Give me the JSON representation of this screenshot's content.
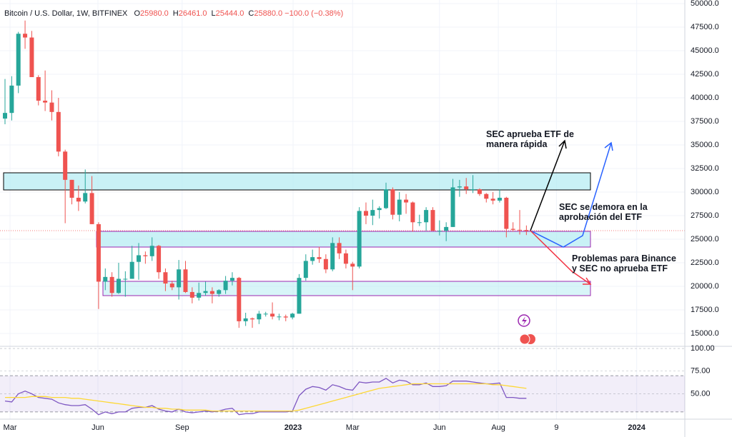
{
  "chart_data": [
    {
      "type": "candlestick",
      "title": "Bitcoin / U.S. Dollar, 1W, BITFINEX",
      "ohlc_labels": [
        "O",
        "H",
        "L",
        "C"
      ],
      "ohlc_values": [
        "25980.0",
        "26461.0",
        "25444.0",
        "25880.0"
      ],
      "change": "−100.0 (−0.38%)",
      "up_color": "#26a69a",
      "down_color": "#ef5350",
      "open": [
        37800,
        38400,
        41300,
        46800,
        46400,
        42200,
        39700,
        39500,
        38500,
        34300,
        31300,
        29400,
        29000,
        29900,
        26600,
        20500,
        21000,
        19300,
        20800,
        20800,
        22600,
        23300,
        23200,
        24300,
        21500,
        20300,
        19900,
        21800,
        19400,
        18800,
        19300,
        19500,
        19200,
        19600,
        20600,
        20900,
        16300,
        16600,
        16500,
        17100,
        17100,
        16800,
        16800,
        16700,
        17100,
        20900,
        22700,
        23100,
        22900,
        21800,
        24600,
        23500,
        22400,
        22100,
        28000,
        27500,
        28100,
        28300,
        30300,
        27600,
        29200,
        28900,
        26800,
        26800,
        28100,
        25900,
        25900,
        26300,
        30500,
        30600,
        30300,
        30300,
        29800,
        29300,
        29100,
        29400,
        26100,
        26000,
        25980
      ],
      "high": [
        42000,
        42300,
        47000,
        48200,
        47100,
        42400,
        42900,
        40800,
        40000,
        34500,
        31300,
        30700,
        32400,
        31700,
        26800,
        21900,
        21500,
        22500,
        21600,
        24300,
        24600,
        23700,
        25200,
        24400,
        21900,
        20600,
        22800,
        22700,
        19900,
        20400,
        20500,
        19900,
        19700,
        21100,
        21500,
        21000,
        17200,
        16700,
        17400,
        17300,
        18300,
        17100,
        17000,
        17200,
        21300,
        23400,
        23900,
        24200,
        23400,
        25200,
        25200,
        23900,
        22600,
        28400,
        28900,
        29200,
        28500,
        31000,
        30500,
        30000,
        29800,
        29000,
        27600,
        28400,
        28400,
        27000,
        26800,
        31400,
        31300,
        31500,
        31800,
        30400,
        29900,
        30000,
        30300,
        29500,
        26800,
        28100,
        26461
      ],
      "low": [
        37200,
        37600,
        40500,
        45200,
        42200,
        39200,
        38600,
        37600,
        33800,
        26700,
        28700,
        28000,
        28800,
        26600,
        17600,
        19600,
        18900,
        19200,
        18900,
        20800,
        20700,
        22400,
        22700,
        20800,
        19500,
        19600,
        18600,
        19300,
        18200,
        18500,
        19000,
        18200,
        18900,
        19200,
        20100,
        15600,
        15800,
        15600,
        16000,
        16800,
        16500,
        16400,
        16300,
        16500,
        17100,
        20600,
        22300,
        22500,
        21400,
        21600,
        22900,
        21900,
        19600,
        21900,
        26600,
        26500,
        27200,
        28200,
        27100,
        26900,
        27700,
        25800,
        26400,
        25900,
        25900,
        25400,
        24800,
        26300,
        29500,
        29800,
        29900,
        29600,
        28900,
        28700,
        28900,
        25200,
        25800,
        25500,
        25444
      ],
      "close": [
        38400,
        41300,
        46800,
        46400,
        42200,
        39700,
        39500,
        38500,
        34300,
        31300,
        29400,
        29000,
        29900,
        26600,
        20500,
        21000,
        19300,
        20800,
        20800,
        22600,
        23300,
        23200,
        24300,
        21500,
        20300,
        19900,
        21800,
        19400,
        18800,
        19300,
        19500,
        19200,
        19600,
        20600,
        20900,
        16300,
        16600,
        16500,
        17100,
        17100,
        16800,
        16800,
        16700,
        17100,
        20900,
        22700,
        23100,
        22900,
        21800,
        24600,
        23500,
        22400,
        22100,
        28000,
        27500,
        28100,
        28300,
        30300,
        27600,
        29200,
        28900,
        26800,
        26800,
        28100,
        25900,
        25900,
        26300,
        30500,
        30600,
        30300,
        30300,
        29800,
        29300,
        29100,
        29400,
        26100,
        26000,
        25980,
        25880
      ],
      "xlim": [
        -0.75,
        101.7
      ],
      "xticks": [
        {
          "value": 0.75,
          "label": "Mar"
        },
        {
          "value": 13.9,
          "label": "Jun"
        },
        {
          "value": 26.5,
          "label": "Sep"
        },
        {
          "value": 43.1,
          "label": "2023"
        },
        {
          "value": 52,
          "label": "Mar"
        },
        {
          "value": 65,
          "label": "Jun"
        },
        {
          "value": 73.8,
          "label": "Aug"
        },
        {
          "value": 82.5,
          "label": "9"
        },
        {
          "value": 94.5,
          "label": "2024"
        }
      ],
      "ylim": [
        13640,
        50380
      ],
      "yticks": [
        {
          "value": 50000,
          "label": "50000.0"
        },
        {
          "value": 47500,
          "label": "47500.0"
        },
        {
          "value": 45000,
          "label": "45000.0"
        },
        {
          "value": 42500,
          "label": "42500.0"
        },
        {
          "value": 40000,
          "label": "40000.0"
        },
        {
          "value": 37500,
          "label": "37500.0"
        },
        {
          "value": 35000,
          "label": "35000.0"
        },
        {
          "value": 32500,
          "label": "32500.0"
        },
        {
          "value": 30000,
          "label": "30000.0"
        },
        {
          "value": 27500,
          "label": "27500.0"
        },
        {
          "value": 25000,
          "label": "25000.0"
        },
        {
          "value": 22500,
          "label": "22500.0"
        },
        {
          "value": 20000,
          "label": "20000.0"
        },
        {
          "value": 17500,
          "label": "17500.0"
        },
        {
          "value": 15000,
          "label": "15000.0"
        }
      ],
      "grid": true,
      "annotations": [
        {
          "lines": [
            "SEC aprueba ETF de",
            "manera rápida"
          ],
          "color": "#000000"
        },
        {
          "lines": [
            "SEC se demora en la",
            "aprobación del ETF"
          ],
          "color": "#2962ff"
        },
        {
          "lines": [
            "Problemas para Binance",
            "y SEC no aprueba ETF"
          ],
          "color": "#f23645"
        }
      ]
    },
    {
      "type": "line",
      "series": [
        {
          "color": "#7e57c2",
          "values": [
            42,
            41,
            50,
            53,
            50,
            46,
            45,
            44,
            40,
            38,
            37,
            37,
            38,
            33,
            27,
            30,
            28,
            30,
            30,
            34,
            35,
            35,
            37,
            33,
            31,
            30,
            33,
            30,
            29,
            30,
            31,
            30,
            31,
            33,
            34,
            27,
            28,
            28,
            30,
            30,
            30,
            30,
            30,
            31,
            48,
            55,
            58,
            57,
            54,
            60,
            58,
            55,
            54,
            63,
            62,
            63,
            63,
            67,
            62,
            65,
            64,
            60,
            60,
            62,
            58,
            58,
            59,
            64,
            64,
            64,
            63,
            62,
            61,
            61,
            62,
            46,
            46,
            45,
            45
          ]
        },
        {
          "color": "#fdd835",
          "values": [
            46,
            46,
            46,
            46,
            47,
            47,
            47,
            46,
            46,
            46,
            45,
            45,
            44,
            43,
            42,
            41,
            40,
            39,
            38,
            37,
            36,
            35,
            35,
            34,
            34,
            33,
            33,
            32,
            32,
            32,
            32,
            31,
            31,
            31,
            31,
            31,
            31,
            31,
            31,
            31,
            31,
            31,
            31,
            31,
            32,
            34,
            36,
            38,
            40,
            42,
            44,
            46,
            48,
            50,
            52,
            54,
            56,
            57,
            58,
            59,
            60,
            61,
            61,
            61,
            61,
            61,
            61,
            61,
            61,
            61,
            61,
            61,
            61,
            60,
            60,
            59,
            58,
            57,
            56
          ]
        }
      ],
      "band": [
        30,
        70
      ],
      "ylim": [
        22,
        102.4
      ],
      "yticks": [
        {
          "value": 100,
          "label": "100.00"
        },
        {
          "value": 75,
          "label": "75.00"
        },
        {
          "value": 50,
          "label": "50.00"
        }
      ]
    }
  ]
}
